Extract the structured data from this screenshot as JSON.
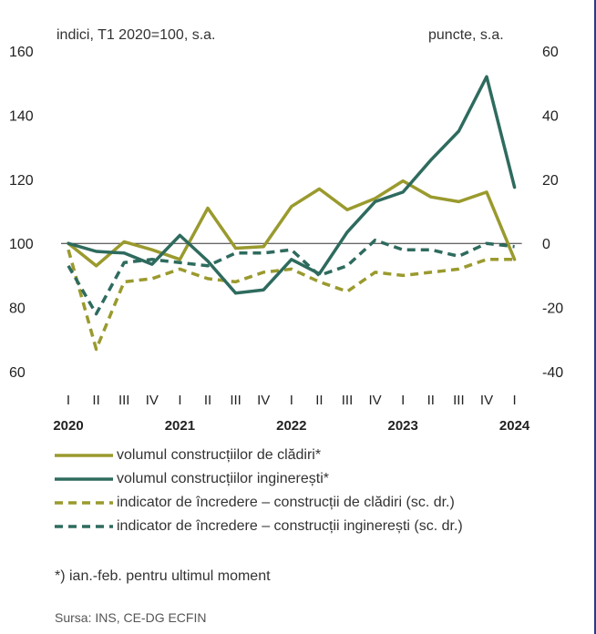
{
  "chart_data": {
    "type": "line",
    "left_unit_label": "indici, T1 2020=100, s.a.",
    "right_unit_label": "puncte, s.a.",
    "categories": [
      "I",
      "II",
      "III",
      "IV",
      "I",
      "II",
      "III",
      "IV",
      "I",
      "II",
      "III",
      "IV",
      "I",
      "II",
      "III",
      "IV",
      "I"
    ],
    "years": [
      {
        "label": "2020",
        "index": 0
      },
      {
        "label": "2021",
        "index": 4
      },
      {
        "label": "2022",
        "index": 8
      },
      {
        "label": "2023",
        "index": 12
      },
      {
        "label": "2024",
        "index": 16
      }
    ],
    "ylim_left": [
      60,
      160
    ],
    "yticks_left": [
      "60",
      "80",
      "100",
      "120",
      "140",
      "160"
    ],
    "ylim_right": [
      -40,
      60
    ],
    "yticks_right": [
      "-40",
      "-20",
      "0",
      "20",
      "40",
      "60"
    ],
    "series": [
      {
        "name": "volumul construcțiilor de clădiri*",
        "axis": "left",
        "style": "solid",
        "color": "#9a9a2e",
        "values": [
          100,
          93,
          100.5,
          98,
          95,
          111,
          98.5,
          99,
          111.5,
          117,
          110.5,
          114,
          119.5,
          114.5,
          113,
          116,
          95
        ]
      },
      {
        "name": "volumul construcțiilor inginerești*",
        "axis": "left",
        "style": "solid",
        "color": "#2e6b5e",
        "values": [
          100,
          97.5,
          97,
          93.5,
          102.5,
          94.5,
          84.5,
          85.5,
          95,
          90.5,
          103.5,
          113,
          116,
          126,
          135,
          152,
          117.5
        ]
      },
      {
        "name": "indicator de încredere – construcții de clădiri (sc. dr.)",
        "axis": "right",
        "style": "dashed",
        "color": "#9a9a2e",
        "values": [
          -2,
          -33,
          -12,
          -11,
          -8,
          -11,
          -12,
          -9,
          -8,
          -12,
          -15,
          -9,
          -10,
          -9,
          -8,
          -5,
          -5
        ]
      },
      {
        "name": "indicator de încredere – construcții inginerești (sc. dr.)",
        "axis": "right",
        "style": "dashed",
        "color": "#2e6b5e",
        "values": [
          -7,
          -22,
          -6,
          -5,
          -6,
          -7,
          -3,
          -3,
          -2,
          -10,
          -7,
          1,
          -2,
          -2,
          -4,
          0,
          -1
        ]
      }
    ]
  },
  "legend": {
    "items": [
      "volumul construcțiilor de clădiri*",
      "volumul construcțiilor inginerești*",
      "indicator de încredere – construcții de clădiri (sc. dr.)",
      "indicator de încredere – construcții inginerești (sc. dr.)"
    ]
  },
  "note": "*) ian.-feb. pentru ultimul moment",
  "source": "Sursa: INS, CE-DG ECFIN"
}
